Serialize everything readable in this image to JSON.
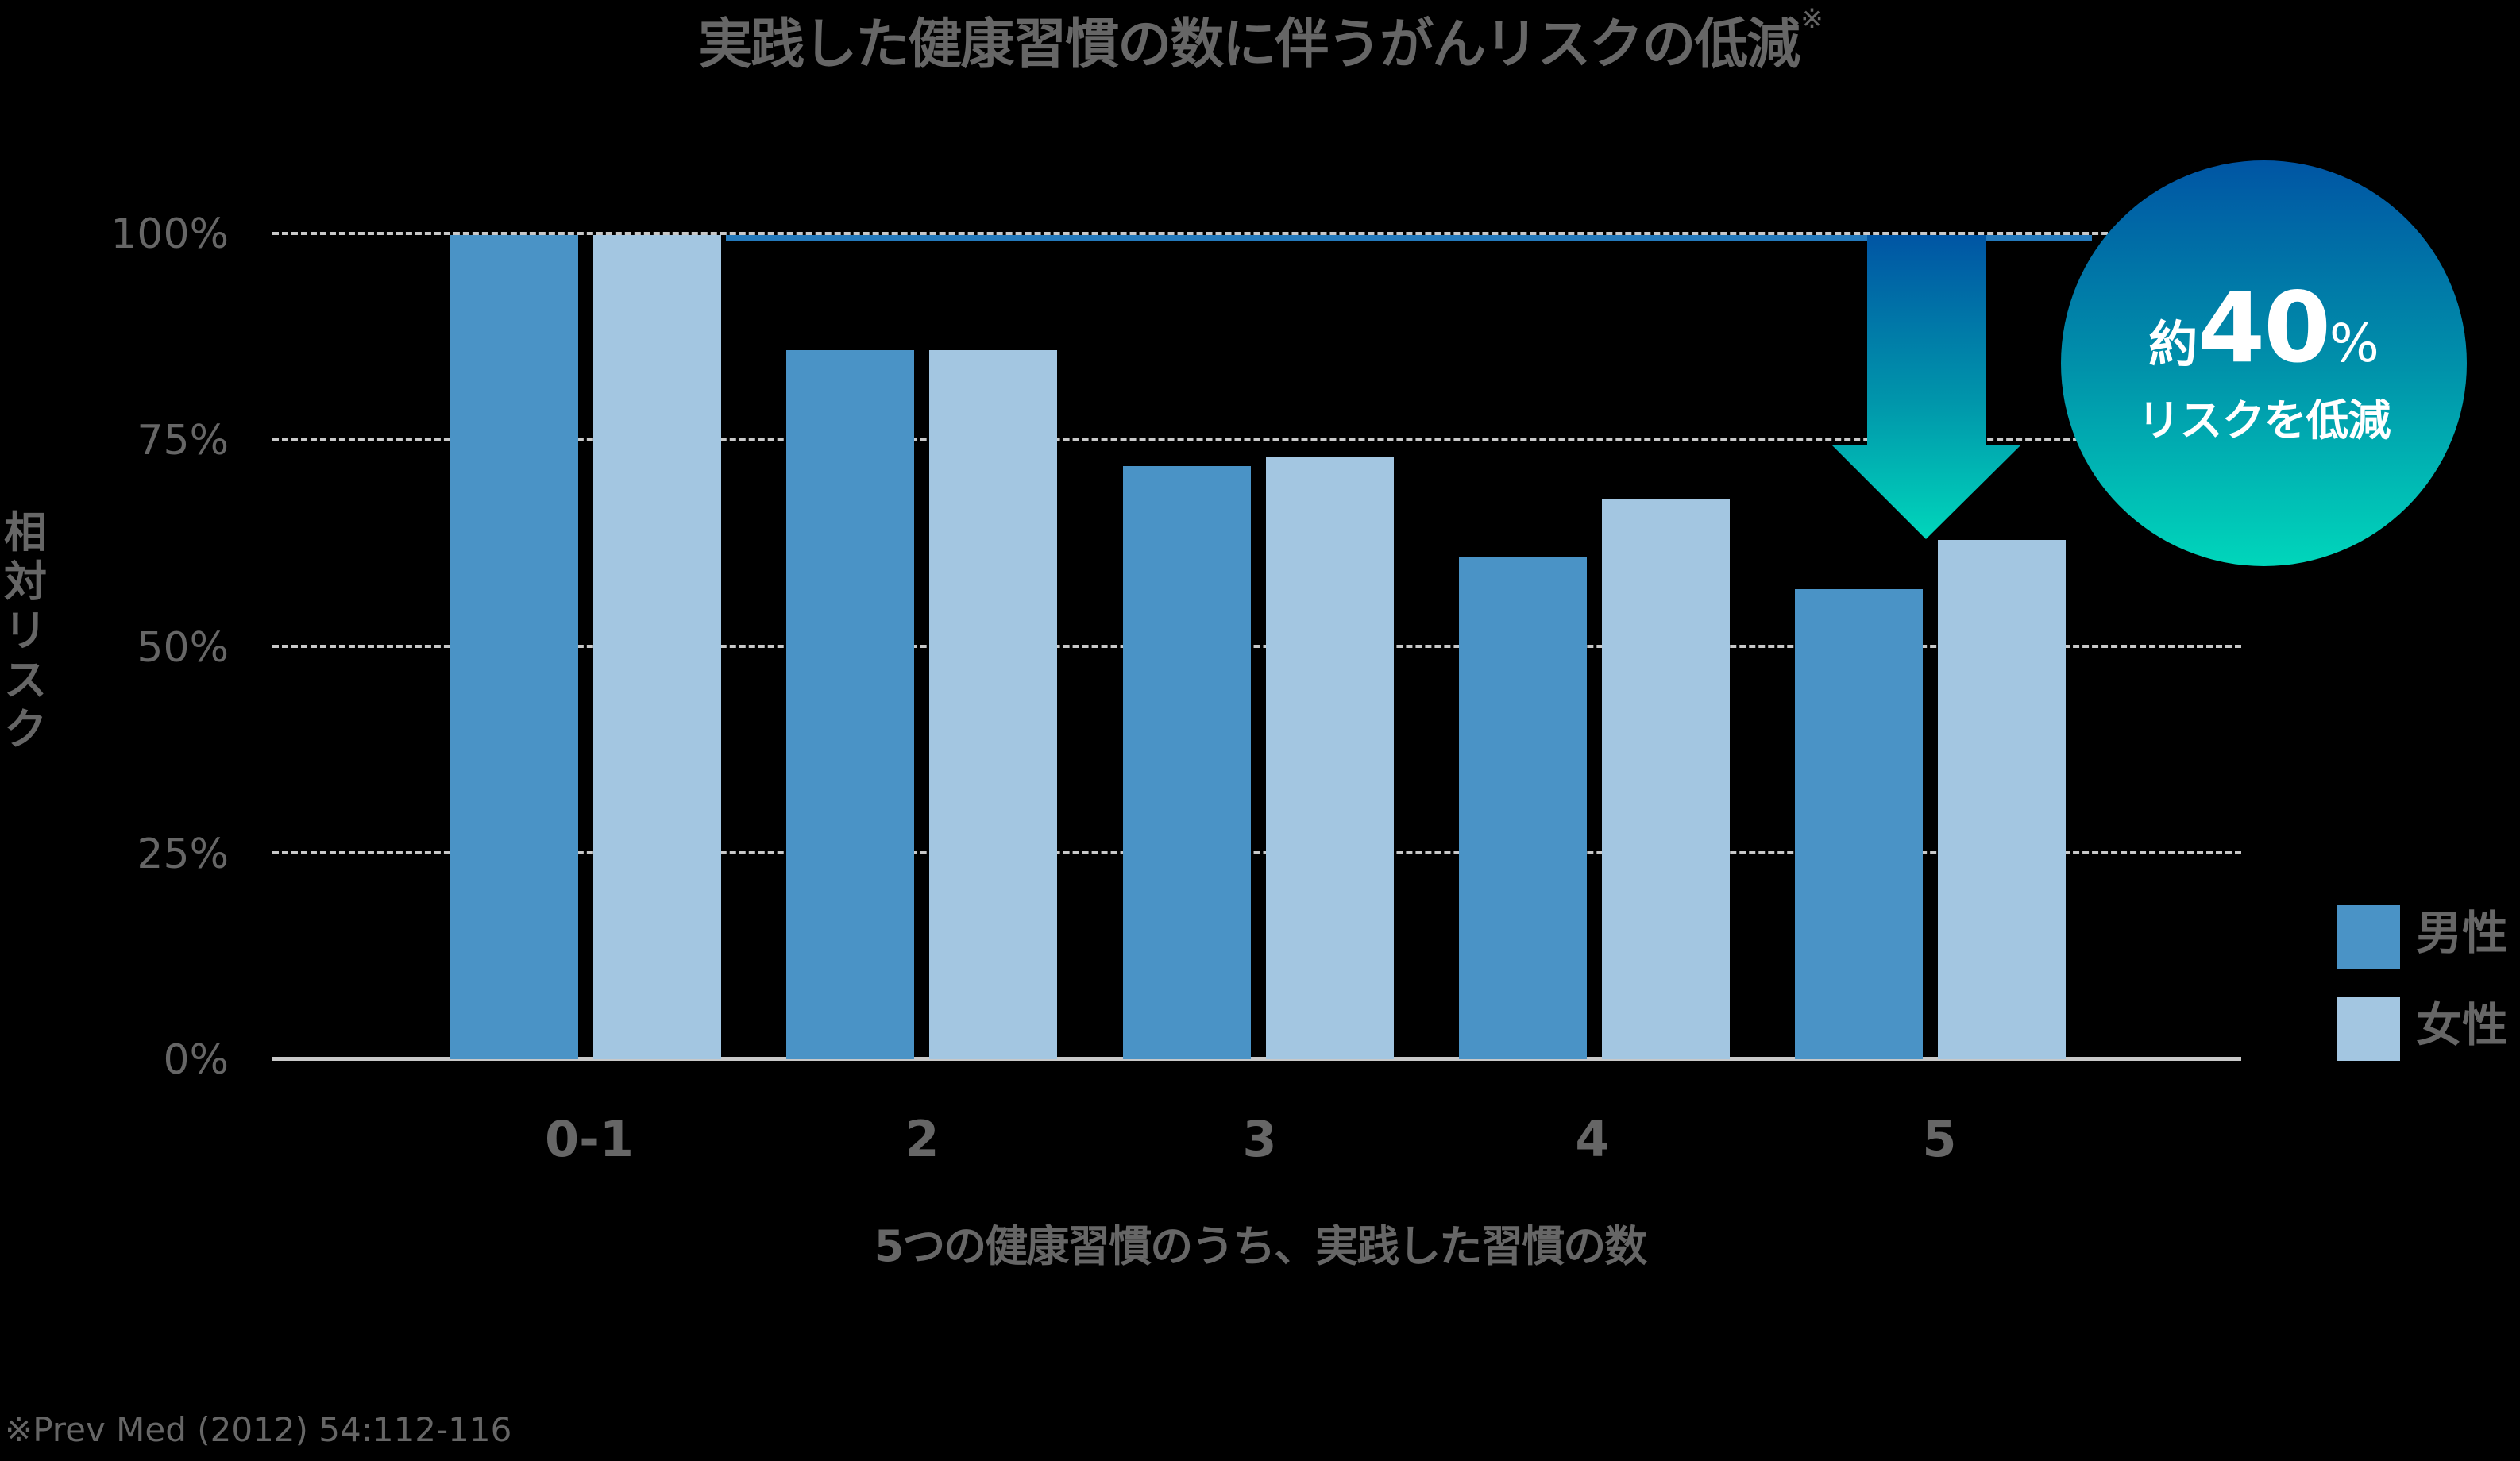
{
  "title": "実践した健康習慣の数に伴うがんリスクの低減",
  "title_mark": "※",
  "y_axis": {
    "label_chars": [
      "相",
      "対",
      "リ",
      "ス",
      "ク"
    ],
    "ticks": [
      "100%",
      "75%",
      "50%",
      "25%",
      "0%"
    ]
  },
  "x_axis": {
    "label": "5つの健康習慣のうち、実践した習慣の数",
    "ticks": [
      "0-1",
      "2",
      "3",
      "4",
      "5"
    ]
  },
  "legend": {
    "items": [
      {
        "label": "男性",
        "color": "#4a93c6"
      },
      {
        "label": "女性",
        "color": "#a3c6e1"
      }
    ]
  },
  "callout": {
    "prefix": "約",
    "number": "40",
    "unit": "%",
    "text": "リスクを低減"
  },
  "footnote": "※Prev Med (2012) 54:112-116",
  "colors": {
    "male": "#4a93c6",
    "female": "#a3c6e1",
    "reference_line": "#2479bb",
    "gradient_top": "#0055a4",
    "gradient_bottom": "#00d6bb",
    "text": "#666666",
    "grid": "#c8c8c8"
  },
  "chart_data": {
    "type": "bar",
    "title": "実践した健康習慣の数に伴うがんリスクの低減※",
    "xlabel": "5つの健康習慣のうち、実践した習慣の数",
    "ylabel": "相対リスク",
    "categories": [
      "0-1",
      "2",
      "3",
      "4",
      "5"
    ],
    "series": [
      {
        "name": "男性",
        "values": [
          100,
          86,
          72,
          61,
          57
        ]
      },
      {
        "name": "女性",
        "values": [
          100,
          86,
          73,
          68,
          63
        ]
      }
    ],
    "ylim": [
      0,
      100
    ],
    "yticks": [
      "0%",
      "25%",
      "50%",
      "75%",
      "100%"
    ],
    "grid": "horizontal dashed",
    "legend_position": "right-bottom",
    "annotations": [
      "約40% リスクを低減 (arrow from 100% line down to group 5)"
    ],
    "footnote": "※Prev Med (2012) 54:112-116"
  }
}
